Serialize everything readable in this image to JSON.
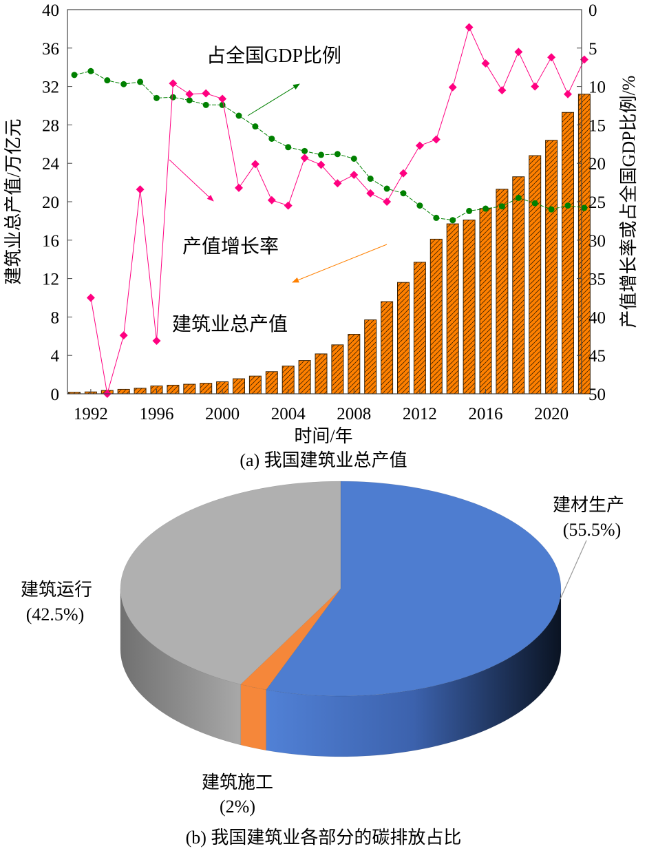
{
  "chart_data": [
    {
      "type": "bar+line",
      "caption": "(a) 我国建筑业总产值",
      "xlabel": "时间/年",
      "ylabel_left": "建筑业总产值/万亿元",
      "ylabel_right": "产值增长率或占全国GDP比例/%",
      "ylim_left": [
        0,
        40
      ],
      "ylim_right": [
        50,
        0
      ],
      "left_ticks": [
        0,
        4,
        8,
        12,
        16,
        20,
        24,
        28,
        32,
        36,
        40
      ],
      "right_ticks": [
        50,
        45,
        40,
        35,
        30,
        25,
        20,
        15,
        10,
        5,
        0
      ],
      "x_ticks": [
        1992,
        1996,
        2000,
        2004,
        2008,
        2012,
        2016,
        2020
      ],
      "x": [
        1991,
        1992,
        1993,
        1994,
        1995,
        1996,
        1997,
        1998,
        1999,
        2000,
        2001,
        2002,
        2003,
        2004,
        2005,
        2006,
        2007,
        2008,
        2009,
        2010,
        2011,
        2012,
        2013,
        2014,
        2015,
        2016,
        2017,
        2018,
        2019,
        2020,
        2021,
        2022
      ],
      "series": [
        {
          "name": "建筑业总产值",
          "type": "bar",
          "axis": "left",
          "color": "#ff8000",
          "values": [
            0.16,
            0.2,
            0.35,
            0.47,
            0.58,
            0.82,
            0.9,
            1.0,
            1.1,
            1.26,
            1.57,
            1.85,
            2.31,
            2.89,
            3.47,
            4.16,
            5.1,
            6.2,
            7.7,
            9.6,
            11.6,
            13.7,
            16.1,
            17.7,
            18.1,
            19.3,
            21.3,
            22.6,
            24.8,
            26.4,
            29.3,
            31.2
          ]
        },
        {
          "name": "占全国GDP比例",
          "type": "line",
          "axis": "right",
          "color": "#008000",
          "values": [
            8.5,
            8.0,
            9.2,
            9.7,
            9.4,
            11.5,
            11.4,
            11.8,
            12.4,
            12.4,
            13.8,
            15.2,
            16.8,
            17.9,
            18.4,
            18.9,
            18.8,
            19.4,
            22.0,
            23.3,
            23.9,
            25.5,
            27.1,
            27.4,
            26.2,
            25.9,
            25.6,
            24.5,
            25.2,
            26.0,
            25.5,
            25.8
          ]
        },
        {
          "name": "产值增长率",
          "type": "line",
          "axis": "right",
          "color": "#ff0080",
          "values": [
            null,
            37.5,
            50,
            42.4,
            23.4,
            43.1,
            9.6,
            11.0,
            10.9,
            11.6,
            23.2,
            20.1,
            24.8,
            25.5,
            19.3,
            20.2,
            22.6,
            21.5,
            23.9,
            25.0,
            21.3,
            17.7,
            16.9,
            10.1,
            2.3,
            7.0,
            10.5,
            5.5,
            10.0,
            6.2,
            11.0,
            6.5
          ]
        }
      ],
      "annotations": {
        "gdp": "占全国GDP比例",
        "growth": "产值增长率",
        "output": "建筑业总产值"
      }
    },
    {
      "type": "pie",
      "caption": "(b) 我国建筑业各部分的碳排放占比",
      "slices": [
        {
          "name": "建材生产",
          "pct_label": "(55.5%)",
          "value": 55.5,
          "color": "#4e7dd0"
        },
        {
          "name": "建筑施工",
          "pct_label": "(2%)",
          "value": 2,
          "color": "#f5873a"
        },
        {
          "name": "建筑运行",
          "pct_label": "(42.5%)",
          "value": 42.5,
          "color": "#b0b0b0"
        }
      ]
    }
  ]
}
